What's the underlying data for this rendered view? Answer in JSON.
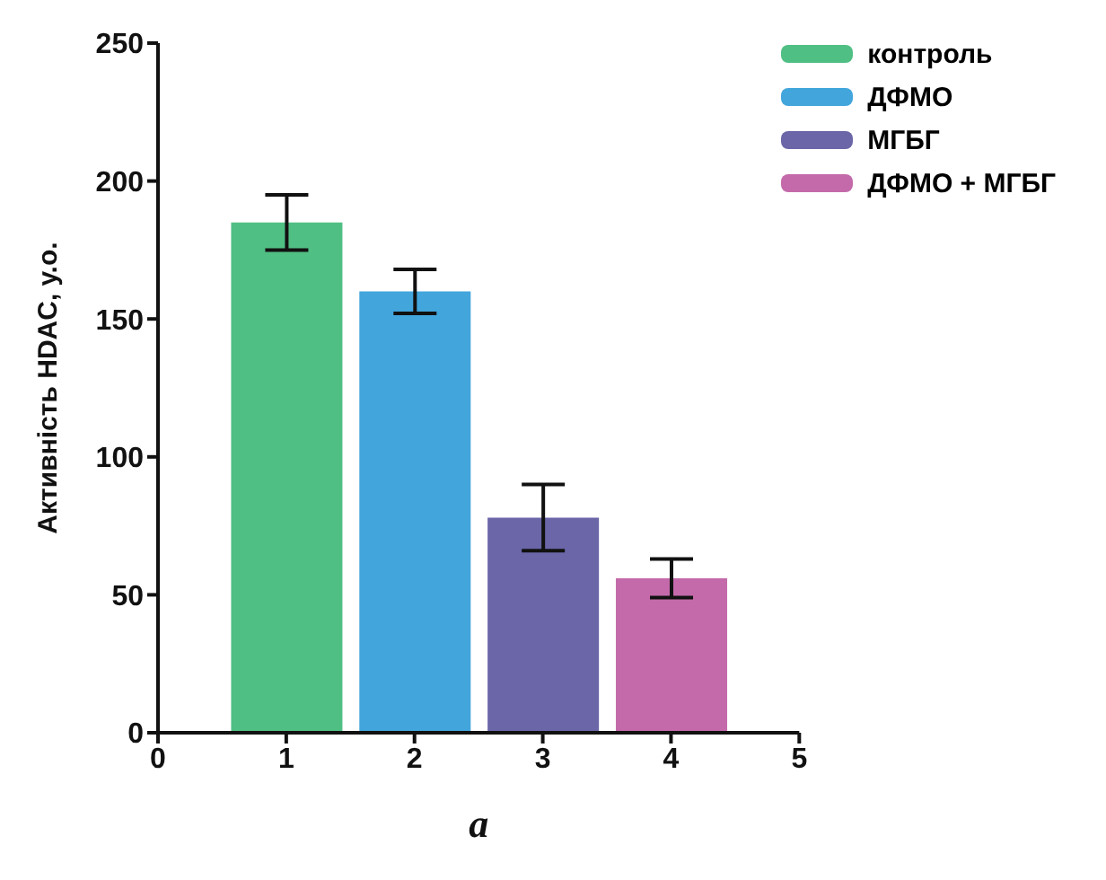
{
  "chart_data": {
    "type": "bar",
    "xlabel": "а",
    "ylabel": "Активність HDAC, у.о.",
    "xlim": [
      0,
      5
    ],
    "xticks": [
      0,
      1,
      2,
      3,
      4,
      5
    ],
    "ylim": [
      0,
      250
    ],
    "yticks": [
      0,
      50,
      100,
      150,
      200,
      250
    ],
    "legend": "top right",
    "grid": false,
    "series": [
      {
        "name": "контроль",
        "color": "#50bf84",
        "x": [
          1
        ],
        "values": [
          185
        ],
        "errors": [
          10
        ]
      },
      {
        "name": "ДФМО",
        "color": "#42a5dc",
        "x": [
          2
        ],
        "values": [
          160
        ],
        "errors": [
          8
        ]
      },
      {
        "name": "МГБГ",
        "color": "#6a66a8",
        "x": [
          3
        ],
        "values": [
          78
        ],
        "errors": [
          12
        ]
      },
      {
        "name": "ДФМО + МГБГ",
        "color": "#c46aab",
        "x": [
          4
        ],
        "values": [
          56
        ],
        "errors": [
          7
        ]
      }
    ]
  }
}
